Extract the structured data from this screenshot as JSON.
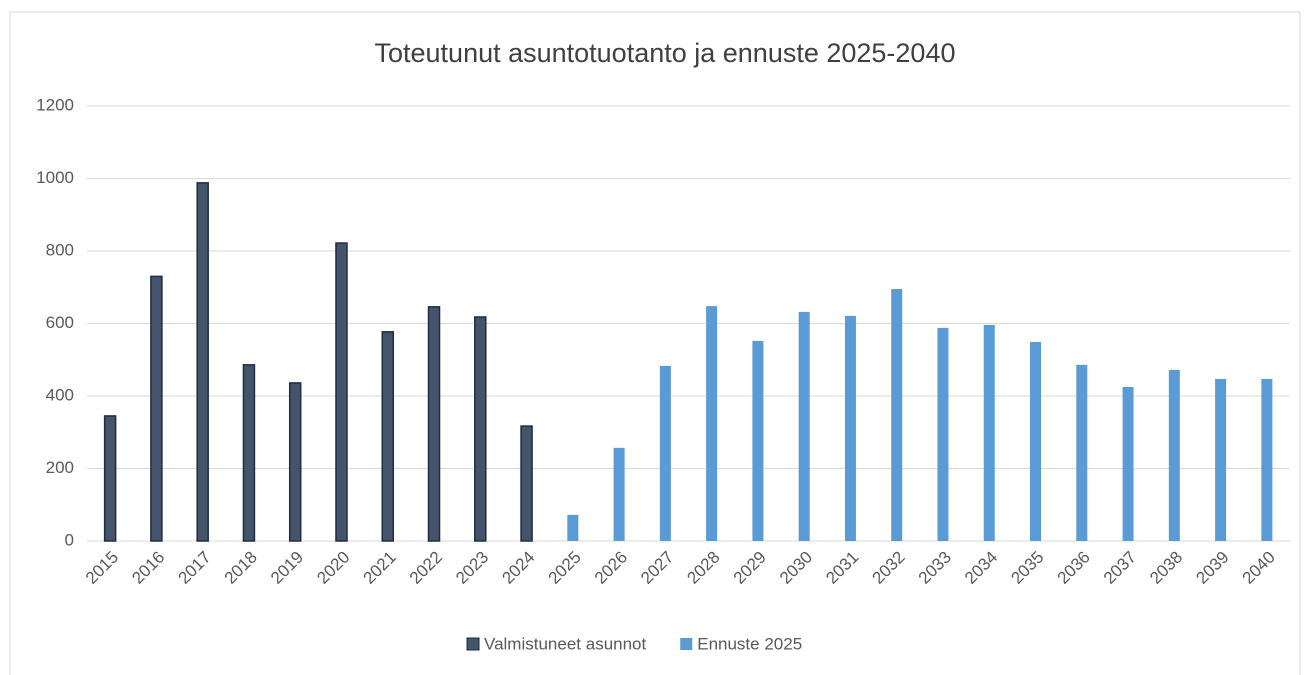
{
  "chart_data": {
    "type": "bar",
    "title": "Toteutunut asuntotuotanto ja ennuste 2025-2040",
    "categories": [
      "2015",
      "2016",
      "2017",
      "2018",
      "2019",
      "2020",
      "2021",
      "2022",
      "2023",
      "2024",
      "2025",
      "2026",
      "2027",
      "2028",
      "2029",
      "2030",
      "2031",
      "2032",
      "2033",
      "2034",
      "2035",
      "2036",
      "2037",
      "2038",
      "2039",
      "2040"
    ],
    "series": [
      {
        "name": "Valmistuneet asunnot",
        "color": "#44546a",
        "stroke": "#1f2d44",
        "values": [
          345,
          730,
          988,
          486,
          436,
          822,
          577,
          646,
          618,
          317,
          null,
          null,
          null,
          null,
          null,
          null,
          null,
          null,
          null,
          null,
          null,
          null,
          null,
          null,
          null,
          null
        ]
      },
      {
        "name": "Ennuste 2025",
        "color": "#5b9bd5",
        "values": [
          null,
          null,
          null,
          null,
          null,
          null,
          null,
          null,
          null,
          null,
          72,
          257,
          483,
          648,
          552,
          632,
          621,
          695,
          588,
          596,
          549,
          486,
          425,
          472,
          447,
          447
        ]
      }
    ],
    "ylim": [
      0,
      1200
    ],
    "yticks": [
      0,
      200,
      400,
      600,
      800,
      1000,
      1200
    ],
    "grid": true,
    "legend": "bottom"
  }
}
